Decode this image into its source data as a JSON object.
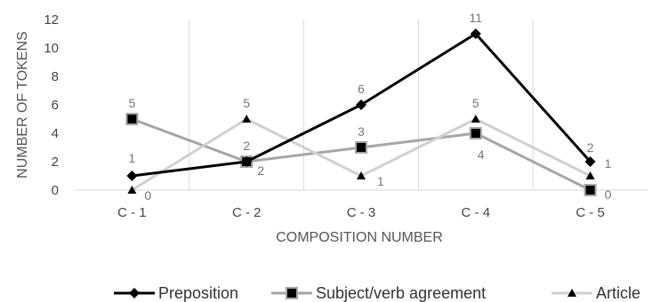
{
  "chart_data": {
    "type": "line",
    "title": "",
    "xlabel": "COMPOSITION NUMBER",
    "ylabel": "NUMBER OF TOKENS",
    "categories": [
      "C - 1",
      "C - 2",
      "C - 3",
      "C - 4",
      "C - 5"
    ],
    "ylim": [
      0,
      12
    ],
    "yticks": [
      "0",
      "2",
      "4",
      "6",
      "8",
      "10",
      "12"
    ],
    "grid": "vertical",
    "legend_position": "bottom",
    "series": [
      {
        "name": "Preposition",
        "values": [
          1,
          2,
          6,
          11,
          2
        ],
        "color": "#000000",
        "marker": "diamond"
      },
      {
        "name": "Subject/verb agreement",
        "values": [
          5,
          2,
          3,
          4,
          0
        ],
        "color": "#a6a6a6",
        "marker": "square"
      },
      {
        "name": "Article",
        "values": [
          0,
          5,
          1,
          5,
          1
        ],
        "color": "#d0d0d0",
        "marker": "triangle"
      }
    ]
  }
}
